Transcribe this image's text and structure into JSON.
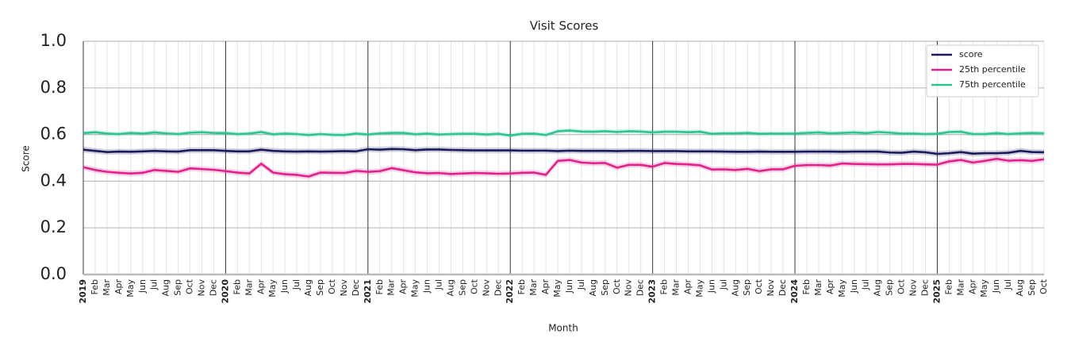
{
  "chart_data": {
    "type": "line",
    "title": "Visit Scores",
    "x_label": "Month",
    "y_label": "Score",
    "categories": [
      "2019",
      "Feb",
      "Mar",
      "Apr",
      "May",
      "Jun",
      "Jul",
      "Aug",
      "Sep",
      "Oct",
      "Nov",
      "Dec",
      "2020",
      "Feb",
      "Mar",
      "Apr",
      "May",
      "Jun",
      "Jul",
      "Aug",
      "Sep",
      "Oct",
      "Nov",
      "Dec",
      "2021",
      "Feb",
      "Mar",
      "Apr",
      "May",
      "Jun",
      "Jul",
      "Aug",
      "Sep",
      "Oct",
      "Nov",
      "Dec",
      "2022",
      "Feb",
      "Mar",
      "Apr",
      "May",
      "Jun",
      "Jul",
      "Aug",
      "Sep",
      "Oct",
      "Nov",
      "Dec",
      "2023",
      "Feb",
      "Mar",
      "Apr",
      "May",
      "Jun",
      "Jul",
      "Aug",
      "Sep",
      "Oct",
      "Nov",
      "Dec",
      "2024",
      "Feb",
      "Mar",
      "Apr",
      "May",
      "Jun",
      "Jul",
      "Aug",
      "Sep",
      "Oct",
      "Nov",
      "Dec",
      "2025",
      "Feb",
      "Mar",
      "Apr",
      "May",
      "Jun",
      "Jul",
      "Aug",
      "Sep",
      "Oct"
    ],
    "series": [
      {
        "name": "score",
        "color": "#1b1b5c",
        "interval": 0.012,
        "values": [
          0.535,
          0.53,
          0.525,
          0.527,
          0.526,
          0.528,
          0.53,
          0.528,
          0.527,
          0.533,
          0.533,
          0.533,
          0.53,
          0.528,
          0.528,
          0.535,
          0.53,
          0.528,
          0.527,
          0.528,
          0.527,
          0.528,
          0.529,
          0.528,
          0.537,
          0.535,
          0.538,
          0.537,
          0.533,
          0.536,
          0.536,
          0.534,
          0.533,
          0.532,
          0.532,
          0.532,
          0.532,
          0.531,
          0.531,
          0.531,
          0.529,
          0.531,
          0.53,
          0.53,
          0.53,
          0.529,
          0.53,
          0.53,
          0.529,
          0.529,
          0.529,
          0.528,
          0.528,
          0.528,
          0.527,
          0.526,
          0.526,
          0.527,
          0.526,
          0.526,
          0.526,
          0.527,
          0.527,
          0.527,
          0.526,
          0.527,
          0.527,
          0.527,
          0.523,
          0.522,
          0.527,
          0.524,
          0.517,
          0.52,
          0.525,
          0.518,
          0.52,
          0.52,
          0.522,
          0.53,
          0.525,
          0.524
        ]
      },
      {
        "name": "25th percentile",
        "color": "#e3218b",
        "interval": 0.012,
        "values": [
          0.46,
          0.448,
          0.44,
          0.436,
          0.433,
          0.436,
          0.448,
          0.444,
          0.44,
          0.455,
          0.452,
          0.449,
          0.443,
          0.437,
          0.433,
          0.475,
          0.437,
          0.43,
          0.427,
          0.42,
          0.437,
          0.436,
          0.435,
          0.444,
          0.44,
          0.443,
          0.456,
          0.447,
          0.438,
          0.434,
          0.435,
          0.431,
          0.433,
          0.435,
          0.434,
          0.432,
          0.433,
          0.436,
          0.437,
          0.427,
          0.487,
          0.491,
          0.48,
          0.477,
          0.478,
          0.458,
          0.47,
          0.47,
          0.462,
          0.478,
          0.474,
          0.472,
          0.468,
          0.45,
          0.451,
          0.448,
          0.453,
          0.443,
          0.451,
          0.451,
          0.466,
          0.469,
          0.469,
          0.467,
          0.476,
          0.474,
          0.473,
          0.472,
          0.472,
          0.474,
          0.474,
          0.472,
          0.471,
          0.485,
          0.491,
          0.48,
          0.487,
          0.496,
          0.488,
          0.49,
          0.487,
          0.494
        ]
      },
      {
        "name": "75th percentile",
        "color": "#2ec48f",
        "interval": 0.01,
        "values": [
          0.606,
          0.61,
          0.604,
          0.602,
          0.607,
          0.604,
          0.609,
          0.605,
          0.602,
          0.608,
          0.61,
          0.607,
          0.606,
          0.602,
          0.604,
          0.611,
          0.601,
          0.604,
          0.602,
          0.598,
          0.602,
          0.599,
          0.598,
          0.604,
          0.6,
          0.605,
          0.607,
          0.607,
          0.601,
          0.604,
          0.6,
          0.602,
          0.603,
          0.603,
          0.6,
          0.603,
          0.596,
          0.603,
          0.604,
          0.598,
          0.614,
          0.617,
          0.613,
          0.612,
          0.614,
          0.611,
          0.614,
          0.613,
          0.609,
          0.612,
          0.612,
          0.61,
          0.612,
          0.603,
          0.605,
          0.605,
          0.607,
          0.603,
          0.604,
          0.604,
          0.604,
          0.607,
          0.609,
          0.605,
          0.607,
          0.609,
          0.606,
          0.611,
          0.608,
          0.604,
          0.604,
          0.602,
          0.603,
          0.611,
          0.612,
          0.602,
          0.602,
          0.606,
          0.602,
          0.605,
          0.607,
          0.605
        ]
      }
    ],
    "ylim": [
      0,
      1
    ],
    "yticks": [
      {
        "value": 0,
        "label": "0.0"
      },
      {
        "value": 0.2,
        "label": "0.2"
      },
      {
        "value": 0.4,
        "label": "0.4"
      },
      {
        "value": 0.6,
        "label": "0.6"
      },
      {
        "value": 0.8,
        "label": "0.8"
      },
      {
        "value": 1,
        "label": "1.0"
      }
    ],
    "grid": true,
    "legend": "upper right"
  }
}
